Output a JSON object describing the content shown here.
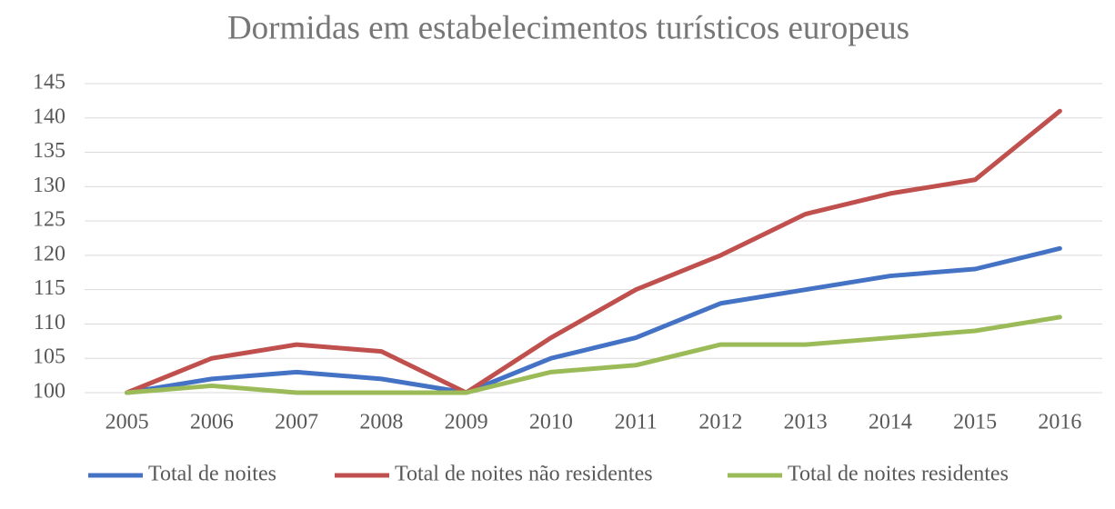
{
  "chart_data": {
    "type": "line",
    "title": "Dormidas em estabelecimentos turísticos europeus",
    "categories": [
      "2005",
      "2006",
      "2007",
      "2008",
      "2009",
      "2010",
      "2011",
      "2012",
      "2013",
      "2014",
      "2015",
      "2016"
    ],
    "series": [
      {
        "name": "Total de noites",
        "color": "#4472c4",
        "values": [
          100,
          102,
          103,
          102,
          100,
          105,
          108,
          113,
          115,
          117,
          118,
          121
        ]
      },
      {
        "name": "Total de noites não residentes",
        "color": "#c0504d",
        "values": [
          100,
          105,
          107,
          106,
          100,
          108,
          115,
          120,
          126,
          129,
          131,
          141
        ]
      },
      {
        "name": "Total de noites residentes",
        "color": "#9bbb59",
        "values": [
          100,
          101,
          100,
          100,
          100,
          103,
          104,
          107,
          107,
          108,
          109,
          111
        ]
      }
    ],
    "ylim": [
      100,
      145
    ],
    "yticks": [
      100,
      105,
      110,
      115,
      120,
      125,
      130,
      135,
      140,
      145
    ],
    "grid": true,
    "legend": "bottom"
  }
}
